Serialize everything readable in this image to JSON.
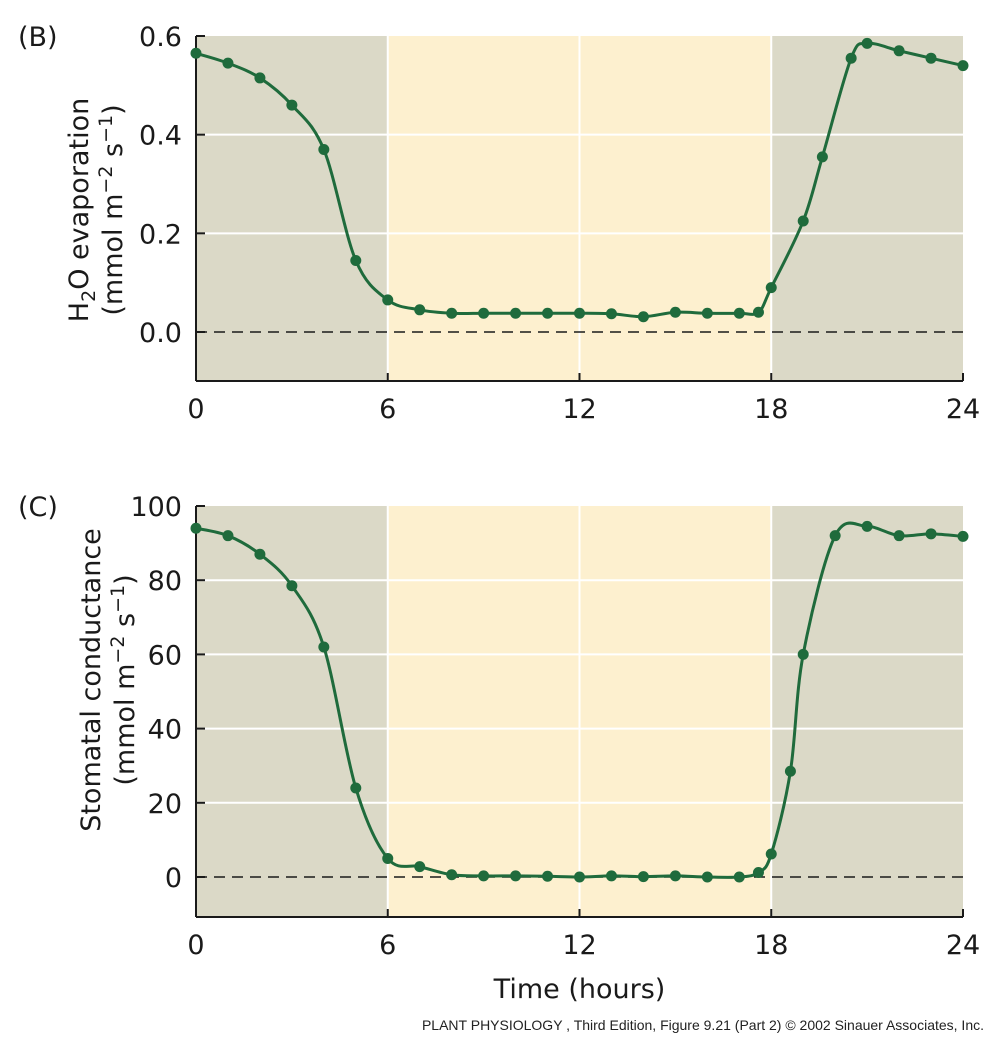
{
  "chart_data": [
    {
      "type": "line",
      "panel_label": "(B)",
      "ylabel_prefix": "H",
      "ylabel_sub": "2",
      "ylabel_rest": "O evaporation",
      "ylabel_units": "(mmol m−2 s−1)",
      "ylabel_units_prefix": "(mmol m",
      "ylabel_units_sup1": "−2",
      "ylabel_units_mid": " s",
      "ylabel_units_sup2": "−1",
      "ylabel_units_suffix": ")",
      "xlabel": "",
      "xlim": [
        0,
        24
      ],
      "ylim": [
        -0.1,
        0.6
      ],
      "xticks": [
        "0",
        "6",
        "12",
        "18",
        "24"
      ],
      "yticks": [
        "0.0",
        "0.2",
        "0.4",
        "0.6"
      ],
      "dark_periods": [
        [
          0,
          6
        ],
        [
          18,
          24
        ]
      ],
      "light_period": [
        6,
        18
      ],
      "zero_line": "dashed",
      "grid": true,
      "series": [
        {
          "x": [
            0,
            1,
            2,
            3,
            4,
            5,
            6,
            7,
            8,
            9,
            10,
            11,
            12,
            13,
            14,
            15,
            16,
            17,
            17.6,
            18,
            19,
            19.6,
            20.5,
            21,
            22,
            23,
            24
          ],
          "y": [
            0.565,
            0.545,
            0.515,
            0.46,
            0.37,
            0.145,
            0.065,
            0.045,
            0.038,
            0.038,
            0.038,
            0.038,
            0.038,
            0.037,
            0.031,
            0.04,
            0.038,
            0.038,
            0.04,
            0.09,
            0.225,
            0.355,
            0.555,
            0.585,
            0.57,
            0.555,
            0.54
          ]
        }
      ]
    },
    {
      "type": "line",
      "panel_label": "(C)",
      "ylabel_rest": "Stomatal conductance",
      "ylabel_units": "(mmol m−2 s−1)",
      "ylabel_units_prefix": "(mmol m",
      "ylabel_units_sup1": "−2",
      "ylabel_units_mid": " s",
      "ylabel_units_sup2": "−1",
      "ylabel_units_suffix": ")",
      "xlabel": "Time (hours)",
      "xlim": [
        0,
        24
      ],
      "ylim": [
        -11,
        100
      ],
      "xticks": [
        "0",
        "6",
        "12",
        "18",
        "24"
      ],
      "yticks": [
        "0",
        "20",
        "40",
        "60",
        "80",
        "100"
      ],
      "dark_periods": [
        [
          0,
          6
        ],
        [
          18,
          24
        ]
      ],
      "light_period": [
        6,
        18
      ],
      "zero_line": "dashed",
      "grid": true,
      "series": [
        {
          "x": [
            0,
            1,
            2,
            3,
            4,
            5,
            6,
            7,
            8,
            9,
            10,
            11,
            12,
            13,
            14,
            15,
            16,
            17,
            17.6,
            18,
            18.6,
            19,
            20,
            21,
            22,
            23,
            24
          ],
          "y": [
            94,
            92,
            87,
            78.5,
            62,
            24,
            5,
            2.8,
            0.6,
            0.3,
            0.3,
            0.2,
            0.0,
            0.3,
            0.1,
            0.3,
            0.0,
            0.0,
            1.2,
            6.2,
            28.5,
            60,
            92,
            94.5,
            92,
            92.5,
            91.8
          ]
        }
      ]
    }
  ],
  "colors": {
    "dark_period": "#dbd9c7",
    "light_period": "#fdf0cf",
    "line": "#1f6b3c",
    "grid": "#ffffff",
    "axis": "#1a1a1a"
  },
  "credit": "PLANT PHYSIOLOGY , Third Edition, Figure 9.21 (Part 2)  © 2002 Sinauer Associates, Inc."
}
